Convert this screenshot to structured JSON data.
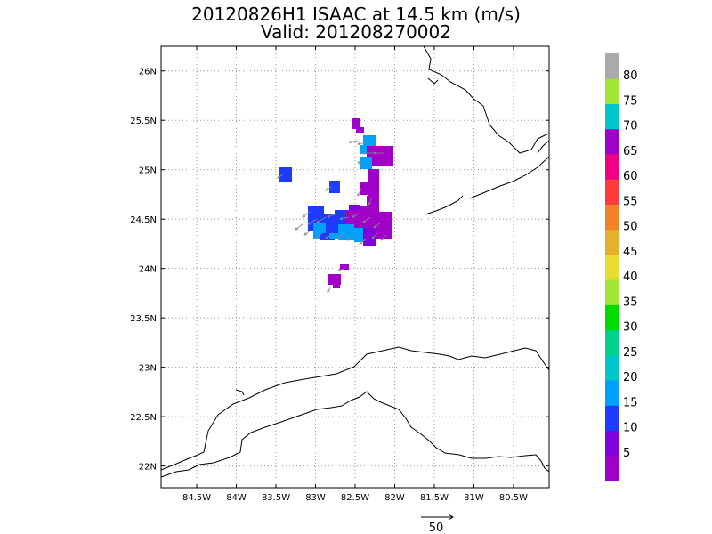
{
  "title": {
    "line1": "20120826H1  ISAAC at 14.5 km (m/s)",
    "line2": "Valid: 201208270002"
  },
  "map": {
    "lat_labels": [
      "26N",
      "25.5N",
      "25N",
      "24.5N",
      "24N",
      "23.5N",
      "23N",
      "22.5N",
      "22N"
    ],
    "lon_labels": [
      "84.5W",
      "84W",
      "83.5W",
      "83W",
      "82.5W",
      "82W",
      "81.5W",
      "81W",
      "80.5W"
    ],
    "lat_range": [
      21.78,
      26.25
    ],
    "lon_range": [
      -84.95,
      -80.05
    ]
  },
  "colorbar": {
    "labels": [
      "5",
      "10",
      "15",
      "20",
      "25",
      "30",
      "35",
      "40",
      "45",
      "50",
      "55",
      "60",
      "65",
      "70",
      "75",
      "80"
    ],
    "colors": [
      "#a000c8",
      "#8200dc",
      "#1e3cff",
      "#00a0ff",
      "#00c8c8",
      "#00d28c",
      "#00dc00",
      "#a0e632",
      "#e6dc32",
      "#e6af2d",
      "#f08228",
      "#fa3c3c",
      "#f00082",
      "#a000c8",
      "#00c8c8",
      "#a0e632",
      "#aaaaaa"
    ]
  },
  "vector_scale": {
    "label": "50"
  }
}
